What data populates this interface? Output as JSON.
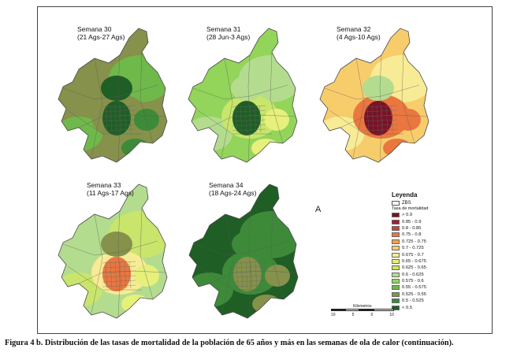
{
  "maps": [
    {
      "title_line1": "Semana 30",
      "title_line2": "(21 Ags-27 Ags)",
      "base_class": 12,
      "outer_class": 11,
      "ring_class": 12,
      "core_class": 14,
      "core_class2": 14,
      "secondary_class": 13
    },
    {
      "title_line1": "Semana 31",
      "title_line2": "(28 Jun-3 Ags)",
      "base_class": 10,
      "outer_class": 9,
      "ring_class": 8,
      "core_class": 14,
      "core_class2": 9,
      "secondary_class": 7
    },
    {
      "title_line1": "Semana 32",
      "title_line2": "(4 Ags-10 Ags)",
      "base_class": 5,
      "outer_class": 6,
      "ring_class": 3,
      "core_class": 0,
      "core_class2": 9,
      "secondary_class": 3
    },
    {
      "title_line1": "Semana 33",
      "title_line2": "(11 Ags-17 Ags)",
      "base_class": 9,
      "outer_class": 8,
      "ring_class": 6,
      "core_class": 3,
      "core_class2": 12,
      "secondary_class": 7
    },
    {
      "title_line1": "Semana 34",
      "title_line2": "(18 Ags-24 Ags)",
      "base_class": 14,
      "outer_class": 13,
      "ring_class": 13,
      "core_class": 12,
      "core_class2": 13,
      "secondary_class": 12
    }
  ],
  "legend": {
    "title": "Leyenda",
    "zbs_label": "ZBS",
    "rate_title": "Tasa de mortalidad",
    "classes": [
      {
        "label": "> 0.9",
        "color": "#7a1226"
      },
      {
        "label": "0.85 - 0.9",
        "color": "#a61d2e"
      },
      {
        "label": "0.8 - 0.85",
        "color": "#d23a3a"
      },
      {
        "label": "0.75 - 0.8",
        "color": "#e9773f"
      },
      {
        "label": "0.725 - 0.75",
        "color": "#f2a24e"
      },
      {
        "label": "0.7 - 0.725",
        "color": "#f7cd6c"
      },
      {
        "label": "0.675 - 0.7",
        "color": "#f8eb95"
      },
      {
        "label": "0.65 - 0.675",
        "color": "#e6f07a"
      },
      {
        "label": "0.625 - 0.65",
        "color": "#c9e56b"
      },
      {
        "label": "0.6 - 0.625",
        "color": "#b4dc8e"
      },
      {
        "label": "0.575 - 0.6",
        "color": "#93d45b"
      },
      {
        "label": "0.55 - 0.575",
        "color": "#6fb84a"
      },
      {
        "label": "0.525 - 0.55",
        "color": "#86914b"
      },
      {
        "label": "0.5 - 0.525",
        "color": "#3d8a39"
      },
      {
        "label": "< 0.5",
        "color": "#1f5e25"
      }
    ]
  },
  "north_arrow": "A",
  "scale": {
    "title": "Kilometros",
    "labels": [
      "10",
      "5",
      "0",
      "10"
    ]
  },
  "caption": "Figura 4 b. Distribución de las tasas de mortalidad de la población de 65 años y más en las semanas de ola de calor (continuación)."
}
